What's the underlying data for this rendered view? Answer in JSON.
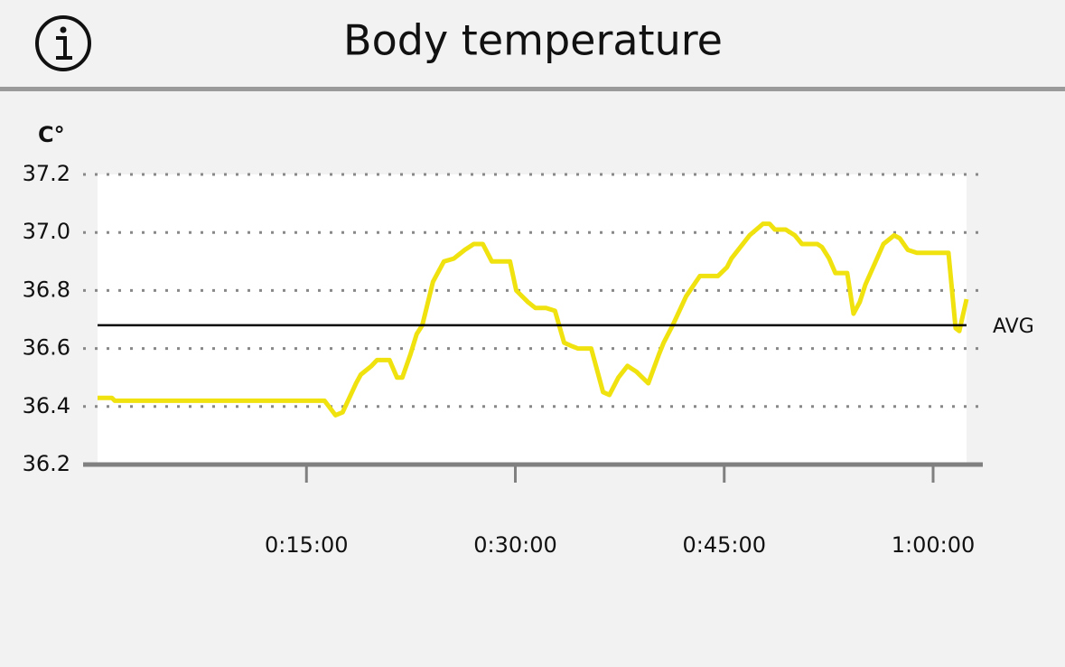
{
  "header": {
    "title": "Body temperature"
  },
  "chart_data": {
    "type": "line",
    "y_label": "C°",
    "x": [
      0,
      62,
      74,
      978,
      1025,
      1056,
      1114,
      1134,
      1180,
      1204,
      1258,
      1290,
      1313,
      1348,
      1375,
      1399,
      1445,
      1492,
      1535,
      1582,
      1621,
      1660,
      1699,
      1777,
      1804,
      1854,
      1886,
      1932,
      1971,
      2010,
      2038,
      2069,
      2127,
      2154,
      2178,
      2205,
      2244,
      2283,
      2322,
      2373,
      2419,
      2439,
      2478,
      2536,
      2595,
      2673,
      2712,
      2731,
      2770,
      2809,
      2867,
      2895,
      2918,
      2965,
      3004,
      3035,
      3101,
      3121,
      3152,
      3179,
      3230,
      3257,
      3284,
      3308,
      3347,
      3386,
      3432,
      3456,
      3491,
      3530,
      3666,
      3697,
      3713,
      3744
    ],
    "series": [
      {
        "color": "#f0e20f",
        "values": [
          36.43,
          36.43,
          36.42,
          36.42,
          36.37,
          36.38,
          36.48,
          36.51,
          36.54,
          36.56,
          36.56,
          36.5,
          36.5,
          36.58,
          36.65,
          36.68,
          36.83,
          36.9,
          36.91,
          36.94,
          36.96,
          36.96,
          36.9,
          36.9,
          36.8,
          36.76,
          36.74,
          36.74,
          36.73,
          36.62,
          36.61,
          36.6,
          36.6,
          36.52,
          36.45,
          36.44,
          36.5,
          36.54,
          36.52,
          36.48,
          36.58,
          36.62,
          36.68,
          36.78,
          36.85,
          36.85,
          36.88,
          36.91,
          36.95,
          36.99,
          37.03,
          37.03,
          37.01,
          37.01,
          36.99,
          36.96,
          36.96,
          36.95,
          36.91,
          36.86,
          36.86,
          36.72,
          36.76,
          36.82,
          36.89,
          36.96,
          36.99,
          36.98,
          36.94,
          36.93,
          36.93,
          36.67,
          36.66,
          36.77
        ]
      }
    ],
    "average": {
      "label": "AVG",
      "value": 36.68
    },
    "xlim": [
      0,
      3744
    ],
    "xticks": [
      {
        "value": 900,
        "label": "0:15:00"
      },
      {
        "value": 1800,
        "label": "0:30:00"
      },
      {
        "value": 2700,
        "label": "0:45:00"
      },
      {
        "value": 3600,
        "label": "1:00:00"
      }
    ],
    "ylim": [
      36.2,
      37.2
    ],
    "yticks": [
      36.2,
      36.4,
      36.6,
      36.8,
      {
        "value": 37,
        "label": "37.0"
      },
      37.2
    ],
    "grid": true
  }
}
